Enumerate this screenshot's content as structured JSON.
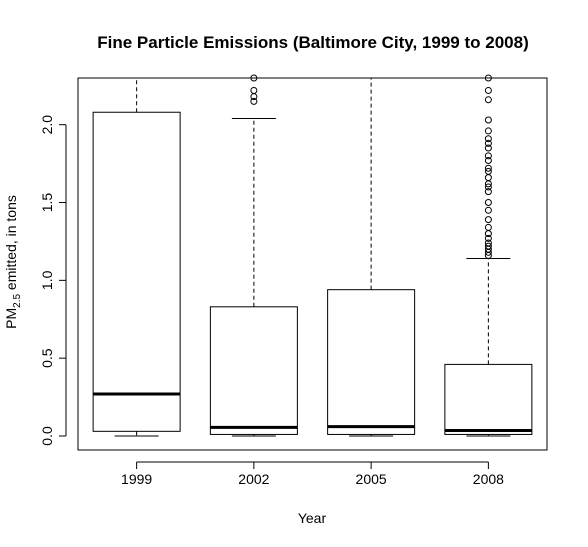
{
  "chart_data": {
    "type": "boxplot",
    "title": "Fine Particle Emissions (Baltimore City, 1999 to 2008)",
    "xlabel": "Year",
    "ylabel_parts": {
      "prefix": "PM",
      "subscript": "2.5",
      "suffix": " emitted, in tons"
    },
    "ylim": [
      -0.09,
      2.3
    ],
    "y_ticks": [
      0.0,
      0.5,
      1.0,
      1.5,
      2.0
    ],
    "y_tick_labels": [
      "0.0",
      "0.5",
      "1.0",
      "1.5",
      "2.0"
    ],
    "categories": [
      "1999",
      "2002",
      "2005",
      "2008"
    ],
    "boxes": [
      {
        "category": "1999",
        "q1": 0.03,
        "median": 0.27,
        "q3": 2.08,
        "whisker_low": 0.0,
        "whisker_high": 2.4,
        "outliers": []
      },
      {
        "category": "2002",
        "q1": 0.01,
        "median": 0.055,
        "q3": 0.83,
        "whisker_low": 0.0,
        "whisker_high": 2.04,
        "outliers": [
          2.15,
          2.18,
          2.22,
          2.3
        ]
      },
      {
        "category": "2005",
        "q1": 0.01,
        "median": 0.06,
        "q3": 0.94,
        "whisker_low": 0.0,
        "whisker_high": 2.4,
        "outliers": []
      },
      {
        "category": "2008",
        "q1": 0.01,
        "median": 0.035,
        "q3": 0.46,
        "whisker_low": 0.0,
        "whisker_high": 1.14,
        "outliers": [
          1.16,
          1.18,
          1.2,
          1.22,
          1.24,
          1.27,
          1.3,
          1.34,
          1.39,
          1.45,
          1.5,
          1.57,
          1.6,
          1.62,
          1.66,
          1.7,
          1.72,
          1.77,
          1.8,
          1.85,
          1.88,
          1.91,
          1.96,
          2.03,
          2.16,
          2.22,
          2.3
        ]
      }
    ]
  }
}
